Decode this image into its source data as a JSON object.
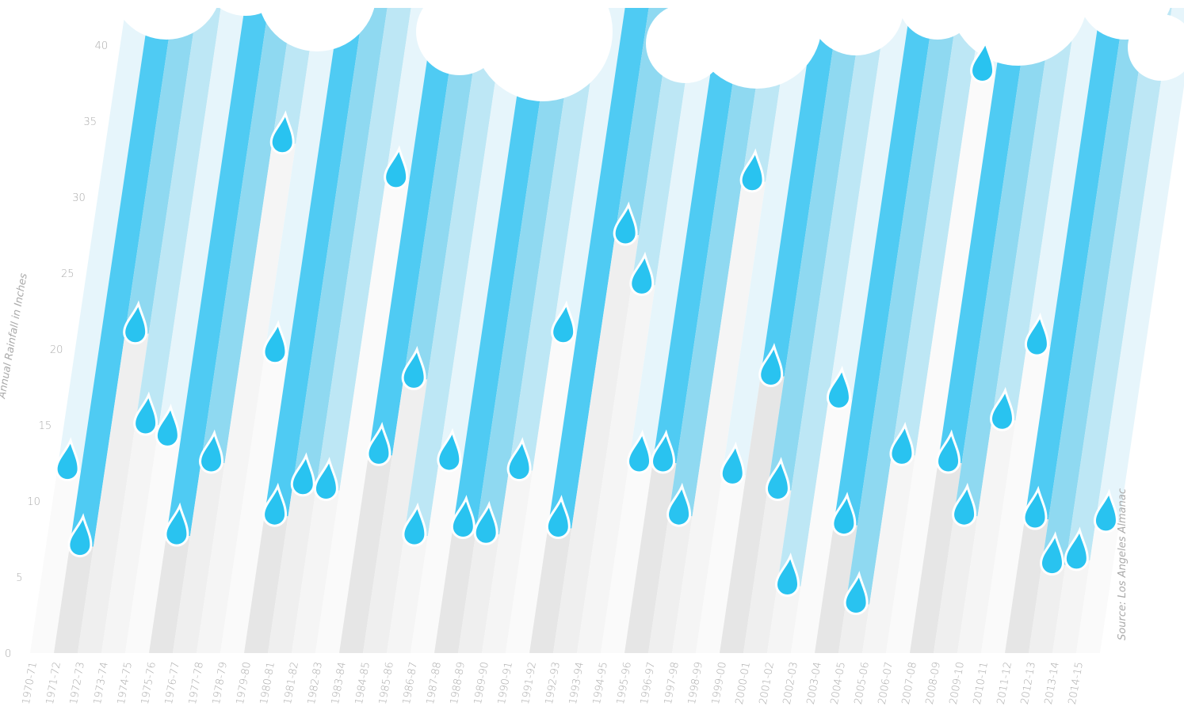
{
  "chart_data": {
    "type": "bar",
    "y_label": "Annual Rainfall in Inches",
    "source": "Source: Los Angeles Almanac",
    "categories": [
      "1970-71",
      "1971-72",
      "1972-73",
      "1973-74",
      "1974-75",
      "1975-76",
      "1976-77",
      "1977-78",
      "1978-79",
      "1979-80",
      "1980-81",
      "1981-82",
      "1982-83",
      "1983-84",
      "1984-85",
      "1985-86",
      "1986-87",
      "1987-88",
      "1988-89",
      "1989-90",
      "1990-91",
      "1991-92",
      "1992-93",
      "1993-94",
      "1994-95",
      "1995-96",
      "1996-97",
      "1997-98",
      "1998-99",
      "1999-00",
      "2000-01",
      "2001-02",
      "2002-03",
      "2003-04",
      "2004-05",
      "2005-06",
      "2006-07",
      "2007-08",
      "2008-09",
      "2009-10",
      "2010-11",
      "2011-12",
      "2012-13",
      "2013-14",
      "2014-15"
    ],
    "values": [
      12,
      7,
      21,
      15,
      14.2,
      7.7,
      12.5,
      33.5,
      19.7,
      9,
      11,
      10.7,
      31.2,
      13,
      18,
      7.7,
      12.6,
      8.2,
      7.8,
      12,
      21,
      8.2,
      27.5,
      24.2,
      12.5,
      12.5,
      9,
      31,
      11.7,
      18.2,
      10.7,
      4.4,
      16.7,
      8.4,
      3.2,
      13,
      38.2,
      12.5,
      9,
      15.3,
      20.2,
      8.8,
      5.8,
      6.1,
      8.6
    ],
    "ylim": [
      0,
      40
    ],
    "yticks": [
      0,
      5,
      10,
      15,
      20,
      25,
      30,
      35,
      40
    ],
    "rain_colors": [
      "#e6f5fb",
      "#4fcbf3",
      "#8fd9f1",
      "#bde7f5"
    ],
    "ground_colors": [
      "#fafafa",
      "#e6e6e6",
      "#efefef",
      "#f5f5f5"
    ],
    "drop_color": "#29c3f0"
  }
}
